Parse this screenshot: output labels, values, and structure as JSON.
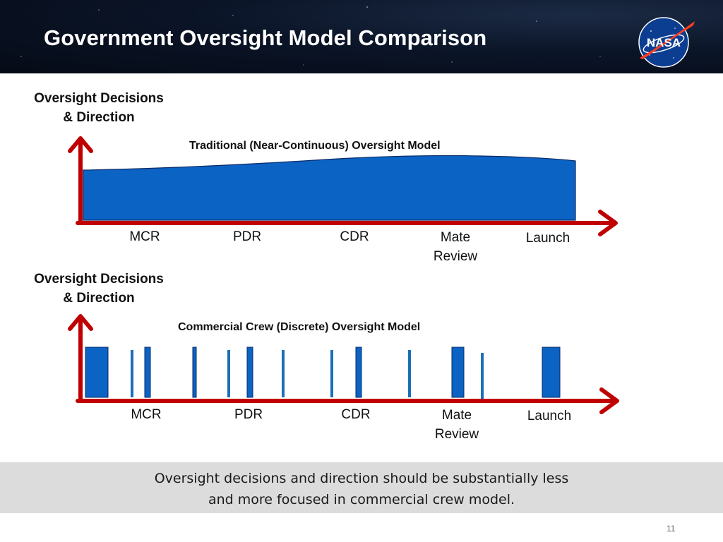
{
  "header": {
    "title": "Government Oversight Model Comparison",
    "logo_text": "NASA"
  },
  "panels": [
    {
      "y_axis_label_lines": [
        "Oversight Decisions",
        "& Direction"
      ],
      "model_title": "Traditional (Near-Continuous) Oversight Model",
      "milestones": [
        {
          "lines": [
            "MCR"
          ]
        },
        {
          "lines": [
            "PDR"
          ]
        },
        {
          "lines": [
            "CDR"
          ]
        },
        {
          "lines": [
            "Mate",
            "Review"
          ]
        },
        {
          "lines": [
            "Launch"
          ]
        }
      ]
    },
    {
      "y_axis_label_lines": [
        "Oversight Decisions",
        "& Direction"
      ],
      "model_title": "Commercial Crew (Discrete) Oversight Model",
      "milestones": [
        {
          "lines": [
            "MCR"
          ]
        },
        {
          "lines": [
            "PDR"
          ]
        },
        {
          "lines": [
            "CDR"
          ]
        },
        {
          "lines": [
            "Mate",
            "Review"
          ]
        },
        {
          "lines": [
            "Launch"
          ]
        }
      ]
    }
  ],
  "summary": {
    "lines": [
      "Oversight decisions and direction should be substantially less",
      "and more focused in commercial crew model."
    ]
  },
  "page_number": "11",
  "colors": {
    "axis": "#c00000",
    "fill": "#0b63c4",
    "fill_stroke": "#0a2a66",
    "line": "#1a70b8",
    "banner": "#dcdcdc"
  }
}
